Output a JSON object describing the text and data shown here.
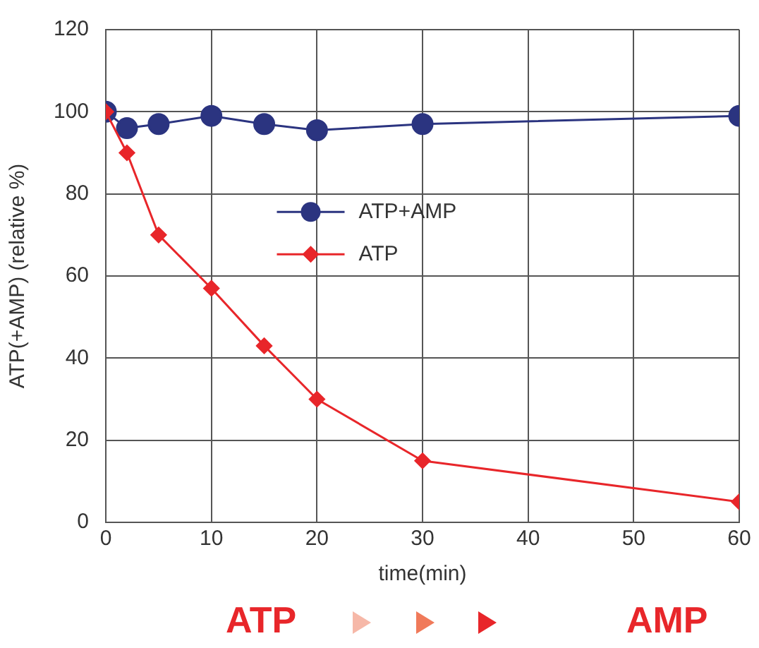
{
  "chart_data": {
    "type": "line",
    "xlabel": "time(min)",
    "ylabel": "ATP(+AMP) (relative %)",
    "x": [
      0,
      2,
      5,
      10,
      15,
      20,
      30,
      60
    ],
    "series": [
      {
        "name": "ATP+AMP",
        "color": "#2b3480",
        "marker": "circle",
        "values": [
          100,
          96,
          97,
          99,
          97,
          95.5,
          97,
          99
        ]
      },
      {
        "name": "ATP",
        "color": "#e8262a",
        "marker": "diamond",
        "values": [
          100,
          90,
          70,
          57,
          43,
          30,
          15,
          5
        ]
      }
    ],
    "xlim": [
      0,
      60
    ],
    "xticks": [
      0,
      10,
      20,
      30,
      40,
      50,
      60
    ],
    "ylim": [
      0,
      120
    ],
    "yticks": [
      0,
      20,
      40,
      60,
      80,
      100,
      120
    ],
    "grid": true,
    "legend": "center",
    "line_style": "solid",
    "annotations": [
      "ATP",
      "AMP"
    ]
  }
}
